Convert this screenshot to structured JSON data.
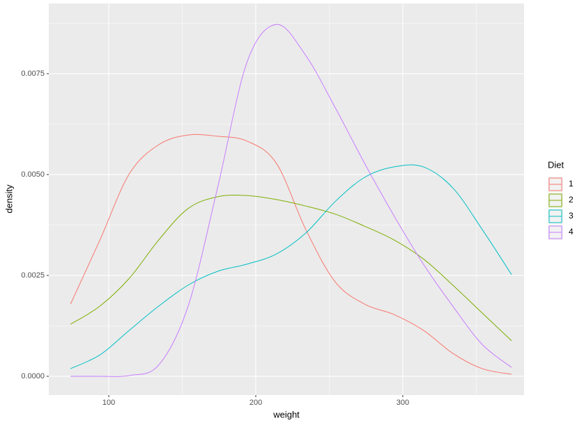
{
  "chart_data": {
    "type": "line",
    "x_label": "weight",
    "y_label": "density",
    "legend_title": "Diet",
    "x": [
      74,
      94,
      114,
      134,
      154,
      174,
      194,
      214,
      234,
      254,
      274,
      294,
      314,
      334,
      354,
      374
    ],
    "series": [
      {
        "name": "1",
        "color": "#F8766D",
        "values": [
          0.00179,
          0.00338,
          0.00502,
          0.00574,
          0.00598,
          0.00595,
          0.00583,
          0.00528,
          0.00364,
          0.00234,
          0.00179,
          0.00153,
          0.00114,
          0.00057,
          0.00019,
          5e-05
        ]
      },
      {
        "name": "2",
        "color": "#7CAE00",
        "values": [
          0.00129,
          0.00174,
          0.00243,
          0.00338,
          0.00416,
          0.00445,
          0.00448,
          0.00438,
          0.00422,
          0.00402,
          0.00372,
          0.00338,
          0.00291,
          0.00226,
          0.00157,
          0.00088
        ]
      },
      {
        "name": "3",
        "color": "#00BFC4",
        "values": [
          0.00019,
          0.00053,
          0.00114,
          0.00174,
          0.00226,
          0.0026,
          0.00278,
          0.00303,
          0.00355,
          0.00433,
          0.00493,
          0.00519,
          0.00519,
          0.00467,
          0.00364,
          0.00252
        ]
      },
      {
        "name": "4",
        "color": "#C77CFF",
        "values": [
          0,
          0,
          2e-05,
          0.00028,
          0.00174,
          0.00467,
          0.00778,
          0.00872,
          0.00795,
          0.00666,
          0.00528,
          0.00398,
          0.00278,
          0.00174,
          0.00079,
          0.00022
        ]
      }
    ],
    "xlim": [
      59.2,
      382.5
    ],
    "ylim": [
      -0.000466,
      0.00924
    ],
    "xticks": [
      100,
      200,
      300
    ],
    "yticks": [
      {
        "value": 0,
        "label": "0.0000"
      },
      {
        "value": 0.0025,
        "label": "0.0025"
      },
      {
        "value": 0.005,
        "label": "0.0050"
      },
      {
        "value": 0.0075,
        "label": "0.0075"
      }
    ],
    "grid": true,
    "legend": "right"
  }
}
